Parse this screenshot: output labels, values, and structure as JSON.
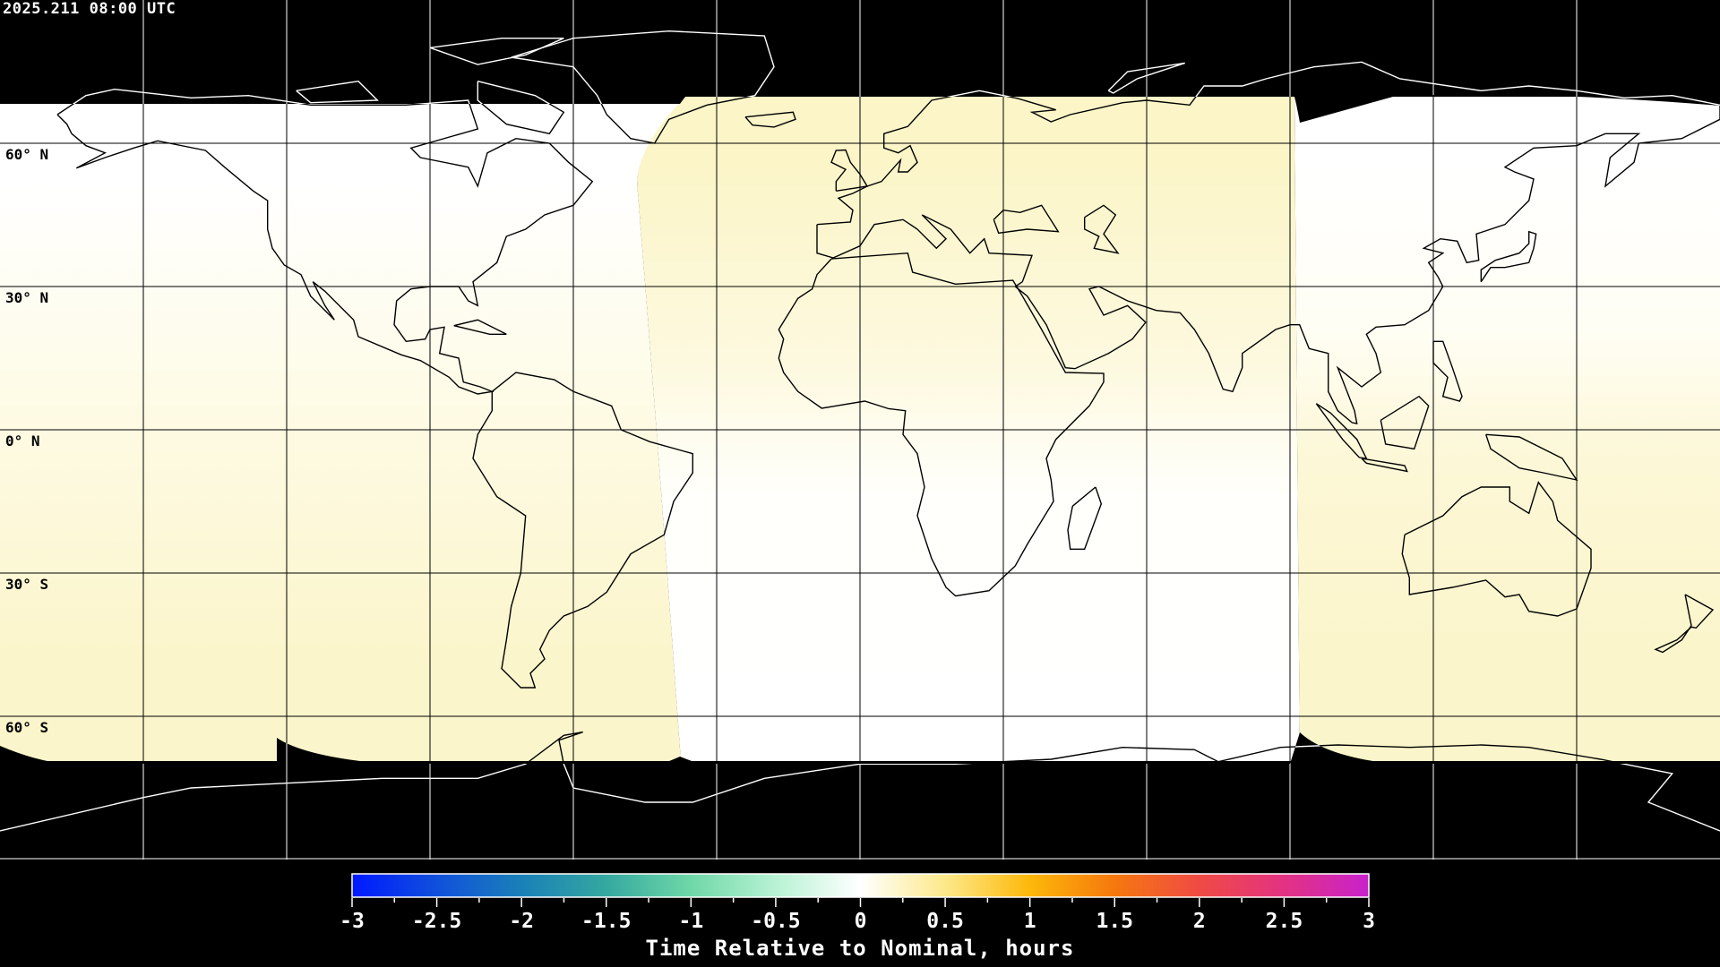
{
  "header": {
    "timestamp": "2025.211 08:00 UTC"
  },
  "map": {
    "projection": "equirectangular",
    "lat_labels": [
      "60° N",
      "30° N",
      "0° N",
      "30° S",
      "60° S"
    ],
    "grid_spacing_deg": 30,
    "colors": {
      "no_data": "#000000",
      "coastline_on_data": "#000000",
      "coastline_on_no_data": "#ffffff",
      "grid": "#000000",
      "pale_yellow": "#fbf6cc",
      "white": "#fffffb"
    }
  },
  "colorbar": {
    "label": "Time Relative to Nominal, hours",
    "range": [
      -3,
      3
    ],
    "tick_labels": [
      "-3",
      "-2.5",
      "-2",
      "-1.5",
      "-1",
      "-0.5",
      "0",
      "0.5",
      "1",
      "1.5",
      "2",
      "2.5",
      "3"
    ],
    "colormap": [
      {
        "value": -3,
        "color": "#0019ff"
      },
      {
        "value": -2.5,
        "color": "#1050dc"
      },
      {
        "value": -2,
        "color": "#1a80b8"
      },
      {
        "value": -1.5,
        "color": "#35a8a0"
      },
      {
        "value": -1,
        "color": "#6fd8a8"
      },
      {
        "value": -0.5,
        "color": "#b8f2d4"
      },
      {
        "value": 0,
        "color": "#ffffff"
      },
      {
        "value": 0.5,
        "color": "#fde98a"
      },
      {
        "value": 1,
        "color": "#fdb80a"
      },
      {
        "value": 1.5,
        "color": "#f5780e"
      },
      {
        "value": 2,
        "color": "#f04a44"
      },
      {
        "value": 2.5,
        "color": "#e33282"
      },
      {
        "value": 3,
        "color": "#c822cc"
      }
    ]
  }
}
